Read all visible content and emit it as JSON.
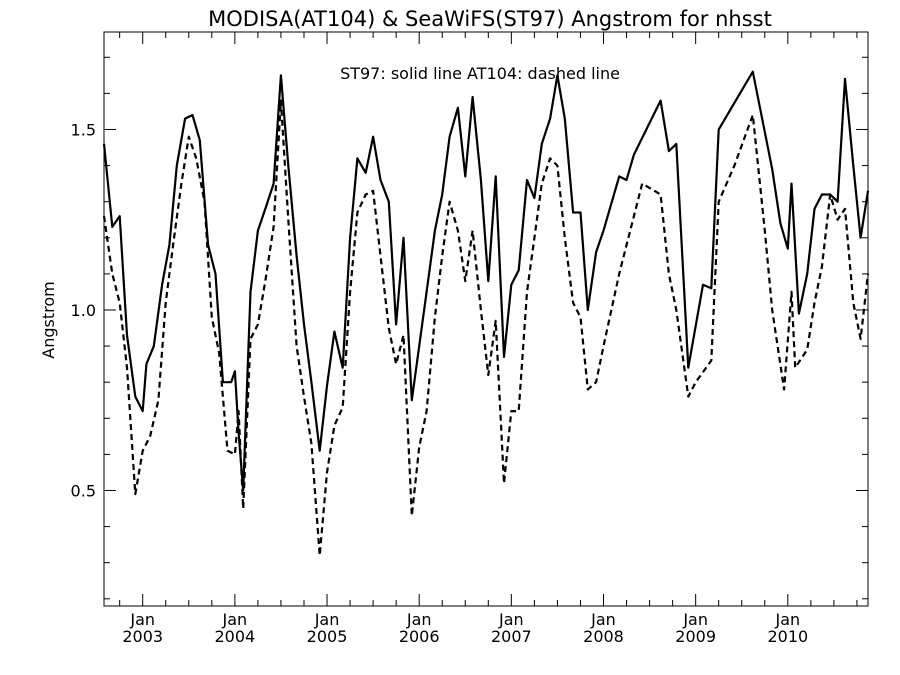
{
  "chart_data": {
    "type": "line",
    "title": "MODISA(AT104) & SeaWiFS(ST97)  Angstrom for nhsst",
    "annotation": "ST97: solid line   AT104: dashed line",
    "xlabel": "",
    "ylabel": "Angstrom",
    "xlim": [
      2002.58,
      2010.87
    ],
    "ylim": [
      0.18,
      1.77
    ],
    "yticks": [
      0.5,
      1.0,
      1.5
    ],
    "ytick_labels": [
      "0.5",
      "1.0",
      "1.5"
    ],
    "xticks": [
      2003.0,
      2004.0,
      2005.0,
      2006.0,
      2007.0,
      2008.0,
      2009.0,
      2010.0
    ],
    "xtick_month_labels": [
      "Jan",
      "Jan",
      "Jan",
      "Jan",
      "Jan",
      "Jan",
      "Jan",
      "Jan"
    ],
    "xtick_year_labels": [
      "2003",
      "2004",
      "2005",
      "2006",
      "2007",
      "2008",
      "2009",
      "2010"
    ],
    "grid": false,
    "series": [
      {
        "name": "ST97",
        "style": "solid",
        "color": "#000000",
        "points": [
          [
            2002.58,
            1.46
          ],
          [
            2002.67,
            1.23
          ],
          [
            2002.75,
            1.26
          ],
          [
            2002.83,
            0.93
          ],
          [
            2002.92,
            0.76
          ],
          [
            2003.0,
            0.72
          ],
          [
            2003.04,
            0.85
          ],
          [
            2003.12,
            0.9
          ],
          [
            2003.21,
            1.07
          ],
          [
            2003.29,
            1.18
          ],
          [
            2003.37,
            1.4
          ],
          [
            2003.46,
            1.53
          ],
          [
            2003.54,
            1.54
          ],
          [
            2003.62,
            1.47
          ],
          [
            2003.71,
            1.18
          ],
          [
            2003.79,
            1.1
          ],
          [
            2003.87,
            0.8
          ],
          [
            2003.96,
            0.8
          ],
          [
            2004.0,
            0.83
          ],
          [
            2004.04,
            0.66
          ],
          [
            2004.09,
            0.5
          ],
          [
            2004.17,
            1.05
          ],
          [
            2004.25,
            1.22
          ],
          [
            2004.33,
            1.28
          ],
          [
            2004.42,
            1.35
          ],
          [
            2004.5,
            1.65
          ],
          [
            2004.58,
            1.4
          ],
          [
            2004.67,
            1.15
          ],
          [
            2004.75,
            0.96
          ],
          [
            2004.83,
            0.8
          ],
          [
            2004.92,
            0.61
          ],
          [
            2005.0,
            0.79
          ],
          [
            2005.08,
            0.94
          ],
          [
            2005.17,
            0.84
          ],
          [
            2005.25,
            1.2
          ],
          [
            2005.33,
            1.42
          ],
          [
            2005.42,
            1.38
          ],
          [
            2005.5,
            1.48
          ],
          [
            2005.58,
            1.36
          ],
          [
            2005.67,
            1.3
          ],
          [
            2005.75,
            0.96
          ],
          [
            2005.83,
            1.2
          ],
          [
            2005.92,
            0.75
          ],
          [
            2006.0,
            0.9
          ],
          [
            2006.08,
            1.05
          ],
          [
            2006.17,
            1.22
          ],
          [
            2006.25,
            1.32
          ],
          [
            2006.33,
            1.48
          ],
          [
            2006.42,
            1.56
          ],
          [
            2006.5,
            1.37
          ],
          [
            2006.58,
            1.59
          ],
          [
            2006.67,
            1.36
          ],
          [
            2006.75,
            1.08
          ],
          [
            2006.83,
            1.37
          ],
          [
            2006.92,
            0.87
          ],
          [
            2007.0,
            1.07
          ],
          [
            2007.08,
            1.11
          ],
          [
            2007.17,
            1.36
          ],
          [
            2007.25,
            1.31
          ],
          [
            2007.33,
            1.46
          ],
          [
            2007.42,
            1.53
          ],
          [
            2007.5,
            1.65
          ],
          [
            2007.58,
            1.53
          ],
          [
            2007.67,
            1.27
          ],
          [
            2007.75,
            1.27
          ],
          [
            2007.83,
            1.0
          ],
          [
            2007.92,
            1.16
          ],
          [
            2008.0,
            1.22
          ],
          [
            2008.17,
            1.37
          ],
          [
            2008.25,
            1.36
          ],
          [
            2008.33,
            1.43
          ],
          [
            2008.62,
            1.58
          ],
          [
            2008.71,
            1.44
          ],
          [
            2008.79,
            1.46
          ],
          [
            2008.92,
            0.84
          ],
          [
            2009.08,
            1.07
          ],
          [
            2009.17,
            1.06
          ],
          [
            2009.25,
            1.5
          ],
          [
            2009.62,
            1.66
          ],
          [
            2009.83,
            1.39
          ],
          [
            2009.92,
            1.24
          ],
          [
            2010.0,
            1.17
          ],
          [
            2010.04,
            1.35
          ],
          [
            2010.12,
            0.99
          ],
          [
            2010.21,
            1.1
          ],
          [
            2010.29,
            1.28
          ],
          [
            2010.37,
            1.32
          ],
          [
            2010.46,
            1.32
          ],
          [
            2010.54,
            1.3
          ],
          [
            2010.62,
            1.64
          ],
          [
            2010.71,
            1.4
          ],
          [
            2010.79,
            1.2
          ],
          [
            2010.87,
            1.33
          ]
        ]
      },
      {
        "name": "AT104",
        "style": "dashed",
        "color": "#000000",
        "points": [
          [
            2002.58,
            1.26
          ],
          [
            2002.67,
            1.1
          ],
          [
            2002.75,
            1.02
          ],
          [
            2002.83,
            0.84
          ],
          [
            2002.92,
            0.49
          ],
          [
            2003.0,
            0.61
          ],
          [
            2003.08,
            0.65
          ],
          [
            2003.17,
            0.75
          ],
          [
            2003.25,
            1.02
          ],
          [
            2003.33,
            1.18
          ],
          [
            2003.42,
            1.35
          ],
          [
            2003.5,
            1.48
          ],
          [
            2003.58,
            1.42
          ],
          [
            2003.67,
            1.3
          ],
          [
            2003.75,
            0.98
          ],
          [
            2003.83,
            0.88
          ],
          [
            2003.92,
            0.61
          ],
          [
            2004.0,
            0.6
          ],
          [
            2004.04,
            0.72
          ],
          [
            2004.09,
            0.45
          ],
          [
            2004.17,
            0.92
          ],
          [
            2004.25,
            0.96
          ],
          [
            2004.33,
            1.08
          ],
          [
            2004.42,
            1.23
          ],
          [
            2004.5,
            1.58
          ],
          [
            2004.58,
            1.25
          ],
          [
            2004.67,
            0.9
          ],
          [
            2004.75,
            0.76
          ],
          [
            2004.83,
            0.63
          ],
          [
            2004.92,
            0.32
          ],
          [
            2005.0,
            0.55
          ],
          [
            2005.08,
            0.68
          ],
          [
            2005.17,
            0.73
          ],
          [
            2005.25,
            1.05
          ],
          [
            2005.33,
            1.27
          ],
          [
            2005.42,
            1.32
          ],
          [
            2005.5,
            1.33
          ],
          [
            2005.58,
            1.15
          ],
          [
            2005.67,
            0.95
          ],
          [
            2005.75,
            0.85
          ],
          [
            2005.83,
            0.93
          ],
          [
            2005.92,
            0.43
          ],
          [
            2006.0,
            0.62
          ],
          [
            2006.08,
            0.72
          ],
          [
            2006.17,
            0.98
          ],
          [
            2006.25,
            1.15
          ],
          [
            2006.33,
            1.3
          ],
          [
            2006.42,
            1.22
          ],
          [
            2006.5,
            1.08
          ],
          [
            2006.58,
            1.22
          ],
          [
            2006.67,
            1.0
          ],
          [
            2006.75,
            0.82
          ],
          [
            2006.83,
            0.97
          ],
          [
            2006.92,
            0.52
          ],
          [
            2007.0,
            0.72
          ],
          [
            2007.08,
            0.72
          ],
          [
            2007.17,
            1.05
          ],
          [
            2007.25,
            1.2
          ],
          [
            2007.33,
            1.35
          ],
          [
            2007.42,
            1.42
          ],
          [
            2007.5,
            1.4
          ],
          [
            2007.58,
            1.2
          ],
          [
            2007.67,
            1.02
          ],
          [
            2007.75,
            0.98
          ],
          [
            2007.83,
            0.78
          ],
          [
            2007.92,
            0.8
          ],
          [
            2008.0,
            0.9
          ],
          [
            2008.17,
            1.1
          ],
          [
            2008.42,
            1.35
          ],
          [
            2008.62,
            1.32
          ],
          [
            2008.71,
            1.1
          ],
          [
            2008.79,
            1.0
          ],
          [
            2008.92,
            0.76
          ],
          [
            2009.0,
            0.8
          ],
          [
            2009.17,
            0.86
          ],
          [
            2009.25,
            1.3
          ],
          [
            2009.42,
            1.4
          ],
          [
            2009.62,
            1.54
          ],
          [
            2009.75,
            1.22
          ],
          [
            2009.83,
            1.0
          ],
          [
            2009.96,
            0.78
          ],
          [
            2010.04,
            1.05
          ],
          [
            2010.08,
            0.84
          ],
          [
            2010.21,
            0.89
          ],
          [
            2010.29,
            1.02
          ],
          [
            2010.37,
            1.12
          ],
          [
            2010.46,
            1.32
          ],
          [
            2010.54,
            1.25
          ],
          [
            2010.62,
            1.28
          ],
          [
            2010.71,
            1.02
          ],
          [
            2010.79,
            0.92
          ],
          [
            2010.87,
            1.1
          ]
        ]
      }
    ]
  }
}
